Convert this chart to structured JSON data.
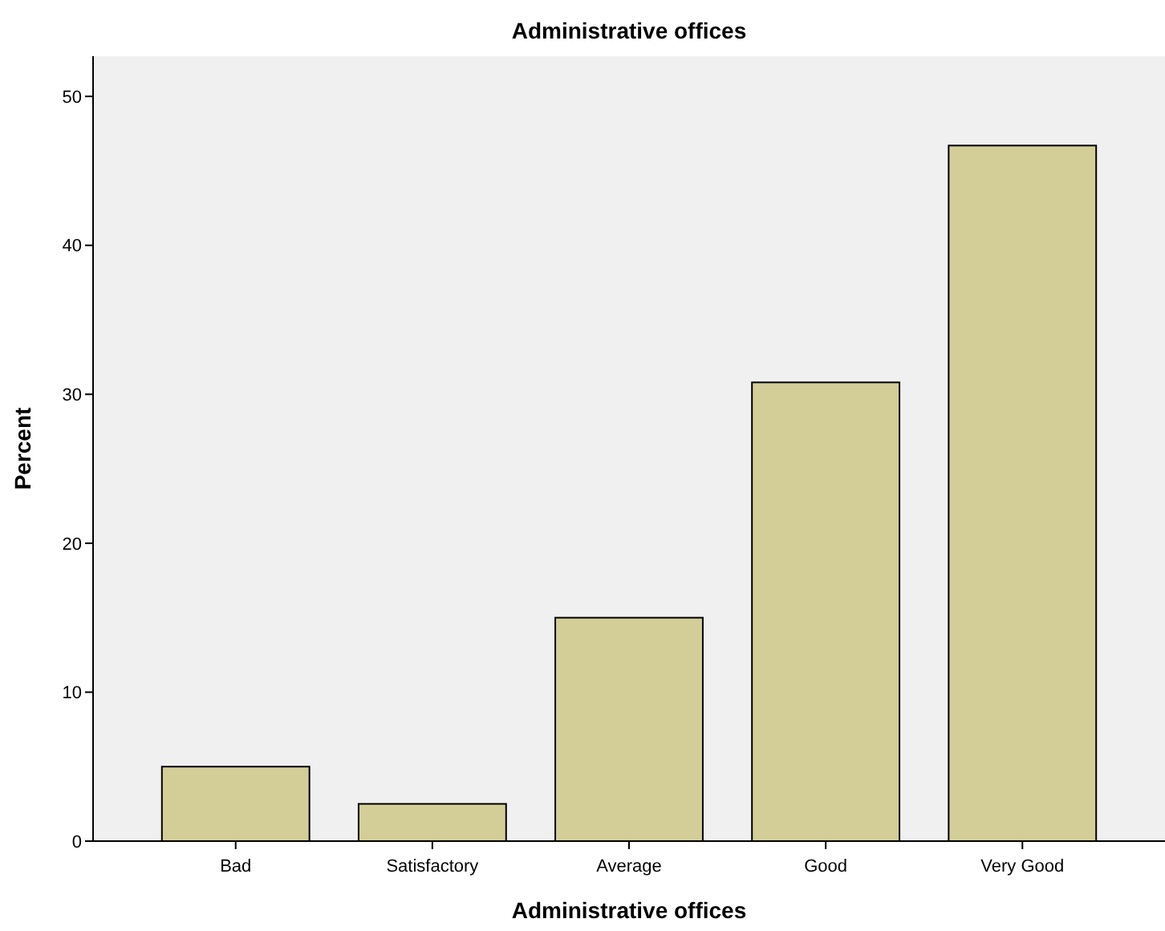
{
  "chart_data": {
    "type": "bar",
    "title": "Administrative offices",
    "xlabel": "Administrative offices",
    "ylabel": "Percent",
    "categories": [
      "Bad",
      "Satisfactory",
      "Average",
      "Good",
      "Very Good"
    ],
    "values": [
      5,
      2.5,
      15,
      30.8,
      46.7
    ],
    "color": "#d3ce97",
    "ylim": [
      0,
      52.7
    ],
    "yticks": [
      0,
      10,
      20,
      30,
      40,
      50
    ],
    "grid": false
  }
}
